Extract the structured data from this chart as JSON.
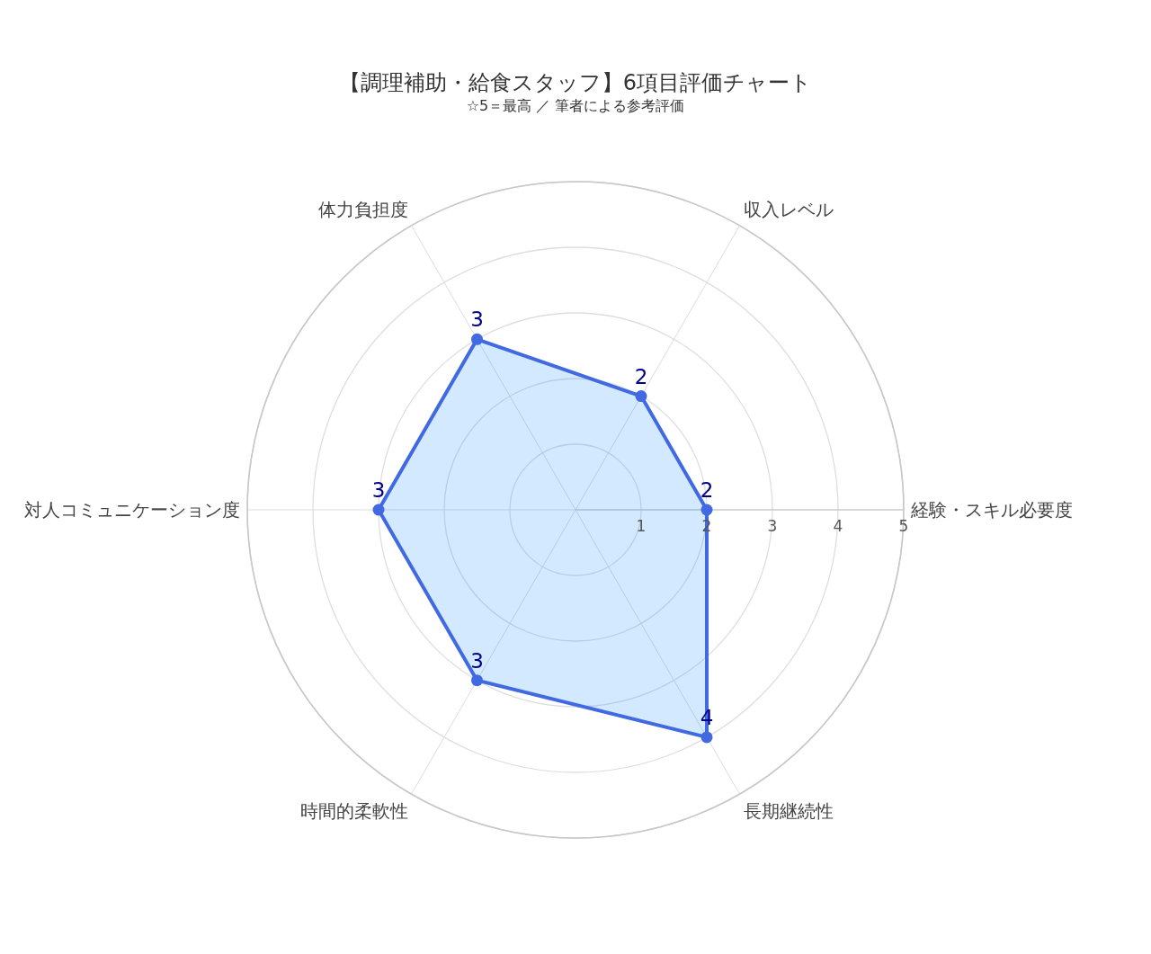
{
  "chart_data": {
    "type": "radar",
    "title": "【調理補助・給食スタッフ】6項目評価チャート",
    "subtitle": "☆5＝最高 ／ 筆者による参考評価",
    "categories": [
      "収入レベル",
      "経験・スキル必要度",
      "長期継続性",
      "時間的柔軟性",
      "対人コミュニケーション度",
      "体力負担度"
    ],
    "series": [
      {
        "color": "#4169e1",
        "values": [
          2,
          2,
          4,
          3,
          3,
          3
        ]
      }
    ],
    "ylim": [
      0,
      5
    ],
    "yticks": [
      1,
      2,
      3,
      4,
      5
    ],
    "grid": true,
    "marker": "circle",
    "line_style": "solid",
    "data_labels": true
  }
}
